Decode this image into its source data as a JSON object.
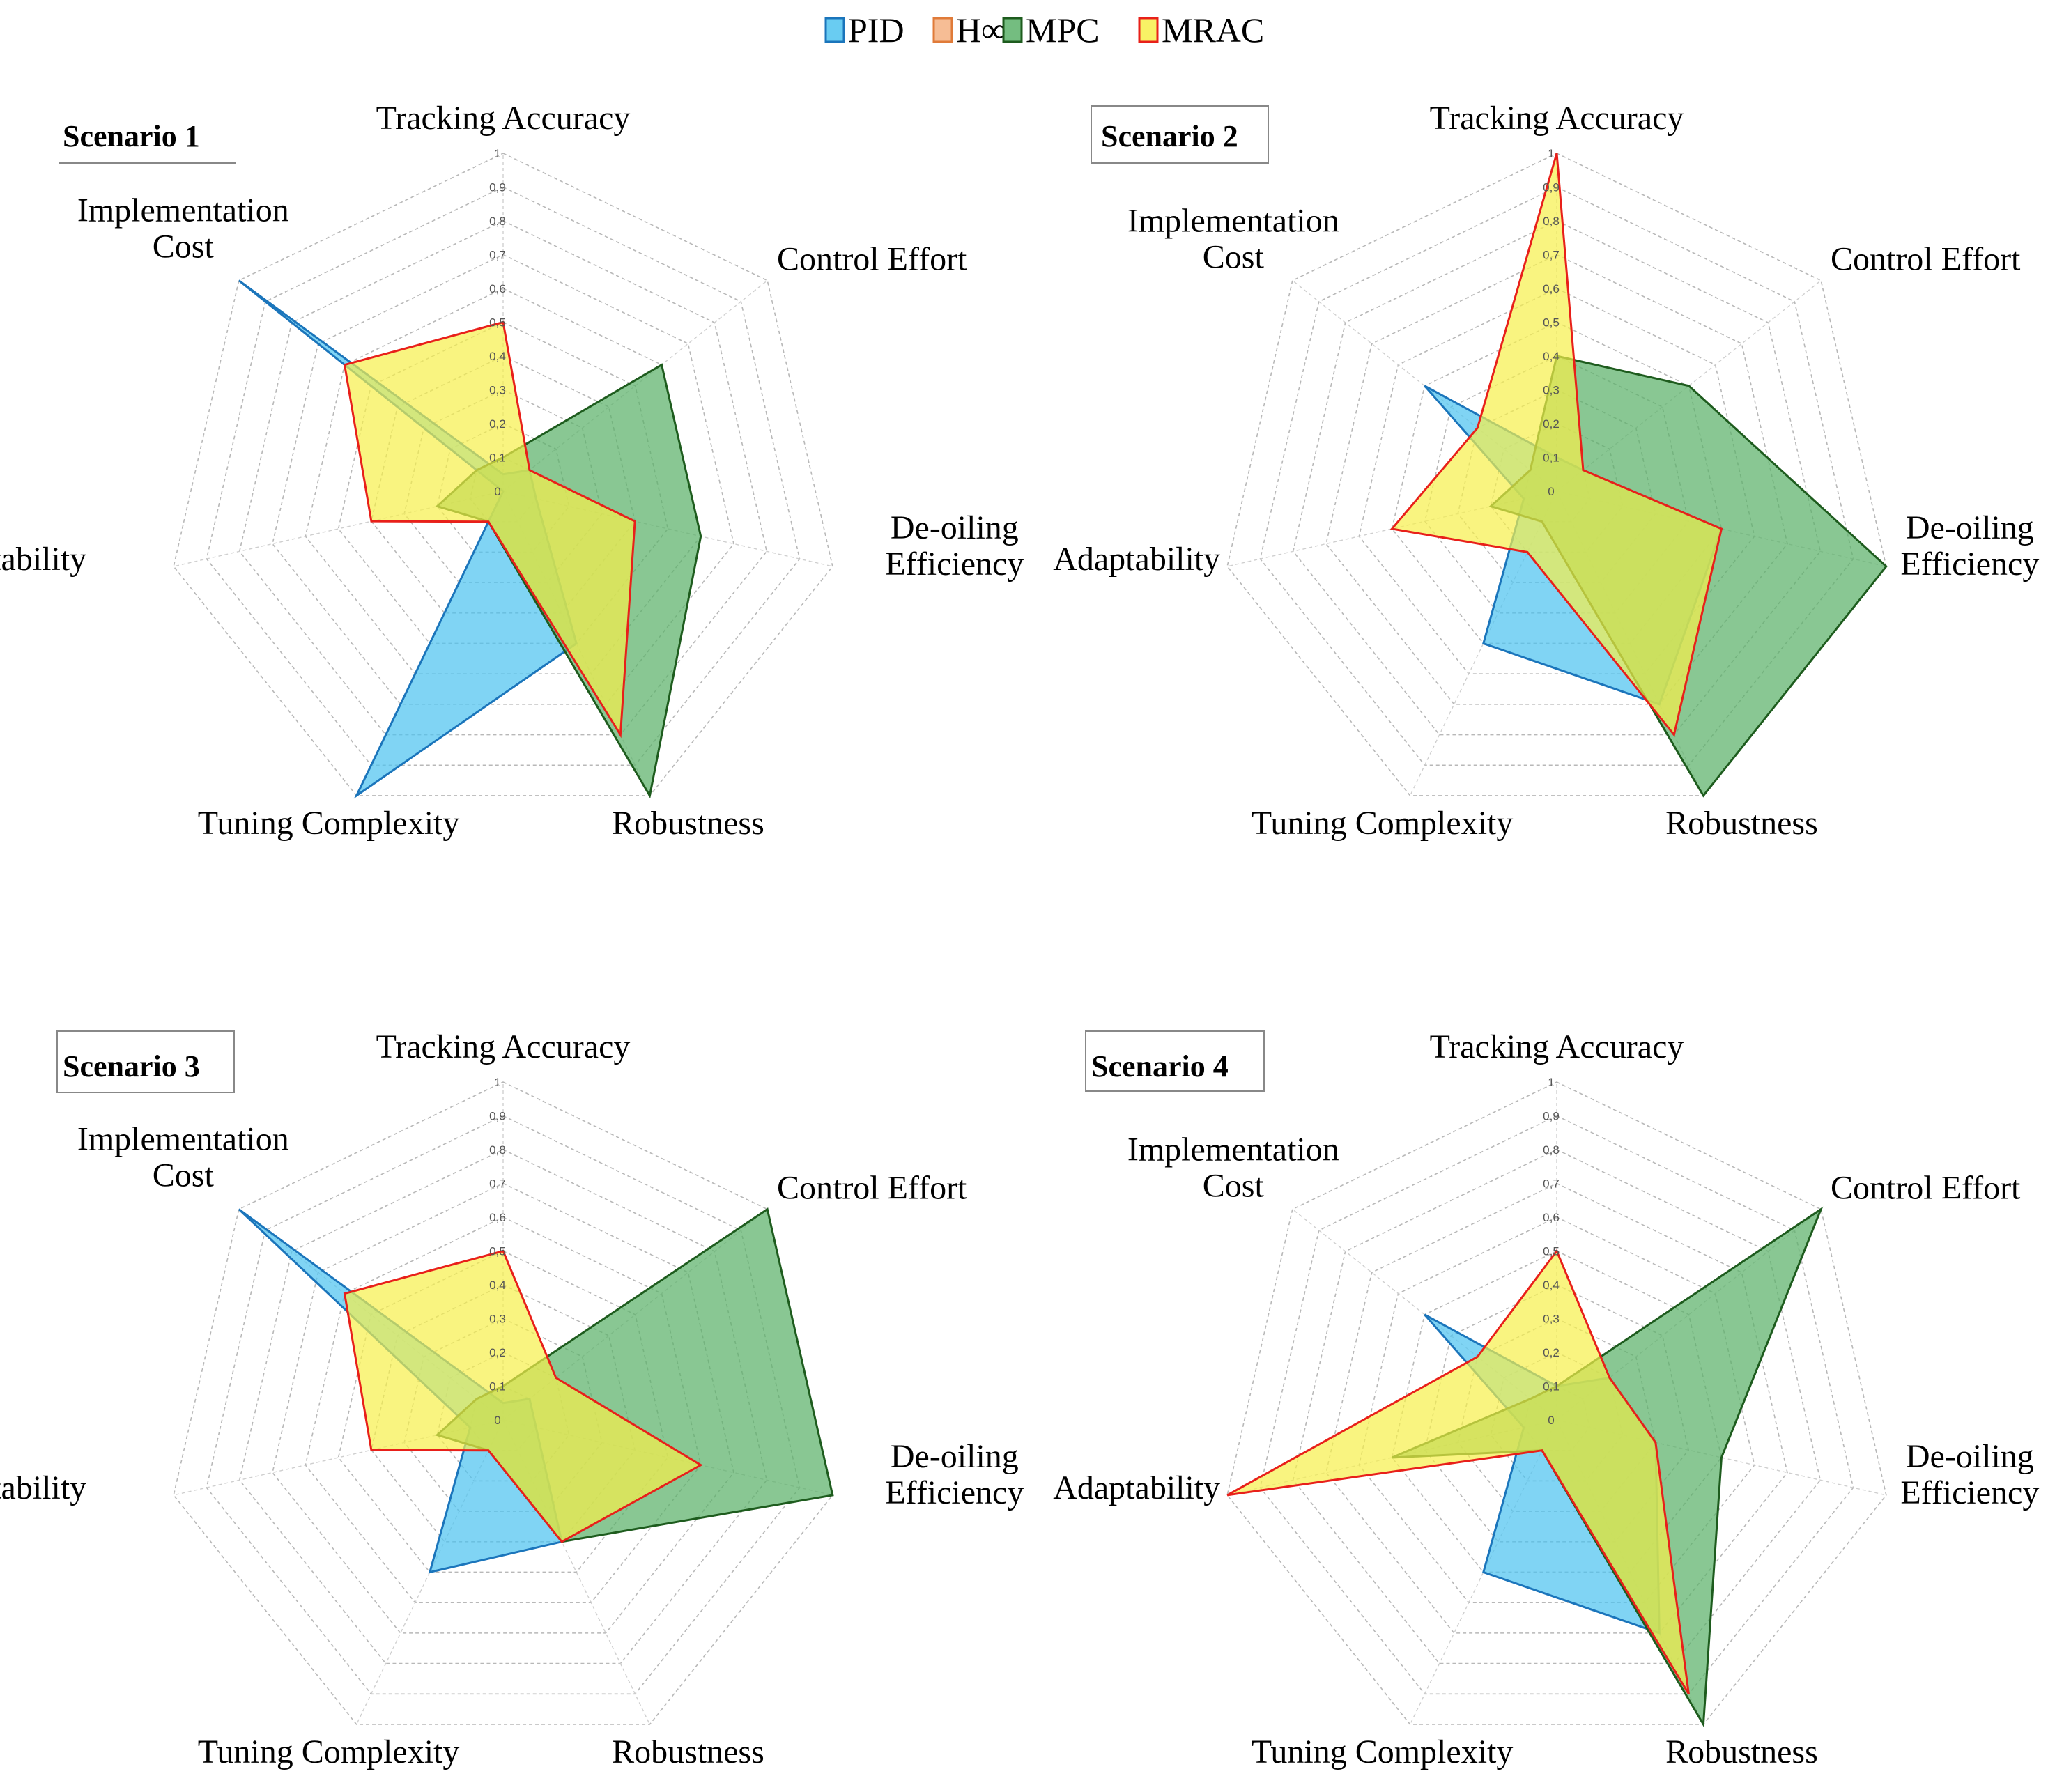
{
  "legend": [
    {
      "name": "PID",
      "fill": "#4fc3f0",
      "stroke": "#1b75bb"
    },
    {
      "name": "H∞",
      "fill": "#f4b183",
      "stroke": "#e07b39"
    },
    {
      "name": "MPC",
      "fill": "#5cb26a",
      "stroke": "#1e5c1e"
    },
    {
      "name": "MRAC",
      "fill": "#f7f04a",
      "stroke": "#e8201a"
    }
  ],
  "chart_data": [
    {
      "type": "radar",
      "title": "Scenario 1",
      "axes": [
        {
          "line1": "Tracking Accuracy",
          "line2": ""
        },
        {
          "line1": "Control Effort",
          "line2": ""
        },
        {
          "line1": "De-oiling",
          "line2": "Efficiency"
        },
        {
          "line1": "Robustness",
          "line2": ""
        },
        {
          "line1": "Tuning Complexity",
          "line2": ""
        },
        {
          "line1": "Adaptability",
          "line2": ""
        },
        {
          "line1": "Implementation",
          "line2": "Cost"
        }
      ],
      "ticks": [
        "0",
        "0,1",
        "0,2",
        "0,3",
        "0,4",
        "0,5",
        "0,6",
        "0,7",
        "0,8",
        "0,9",
        "1"
      ],
      "range": [
        0,
        1
      ],
      "series": [
        {
          "name": "PID",
          "values": [
            0.05,
            0.1,
            0.1,
            0.5,
            1.0,
            0.0,
            1.0
          ]
        },
        {
          "name": "MPC",
          "values": [
            0.1,
            0.6,
            0.6,
            1.0,
            0.1,
            0.2,
            0.1
          ]
        },
        {
          "name": "MRAC",
          "values": [
            0.5,
            0.1,
            0.4,
            0.8,
            0.1,
            0.4,
            0.6
          ]
        }
      ]
    },
    {
      "type": "radar",
      "title": "Scenario 2",
      "axes": [
        {
          "line1": "Tracking Accuracy",
          "line2": ""
        },
        {
          "line1": "Control Effort",
          "line2": ""
        },
        {
          "line1": "De-oiling",
          "line2": "Efficiency"
        },
        {
          "line1": "Robustness",
          "line2": ""
        },
        {
          "line1": "Tuning Complexity",
          "line2": ""
        },
        {
          "line1": "Adaptability",
          "line2": ""
        },
        {
          "line1": "Implementation",
          "line2": "Cost"
        }
      ],
      "ticks": [
        "0",
        "0,1",
        "0,2",
        "0,3",
        "0,4",
        "0,5",
        "0,6",
        "0,7",
        "0,8",
        "0,9",
        "1"
      ],
      "range": [
        0,
        1
      ],
      "series": [
        {
          "name": "PID",
          "values": [
            0.1,
            0.1,
            0.5,
            0.7,
            0.5,
            0.1,
            0.5
          ]
        },
        {
          "name": "MPC",
          "values": [
            0.4,
            0.5,
            1.0,
            1.0,
            0.1,
            0.2,
            0.1
          ]
        },
        {
          "name": "MRAC",
          "values": [
            1.0,
            0.1,
            0.5,
            0.8,
            0.2,
            0.5,
            0.3
          ]
        }
      ]
    },
    {
      "type": "radar",
      "title": "Scenario 3",
      "axes": [
        {
          "line1": "Tracking Accuracy",
          "line2": ""
        },
        {
          "line1": "Control Effort",
          "line2": ""
        },
        {
          "line1": "De-oiling",
          "line2": "Efficiency"
        },
        {
          "line1": "Robustness",
          "line2": ""
        },
        {
          "line1": "Tuning Complexity",
          "line2": ""
        },
        {
          "line1": "Adaptability",
          "line2": ""
        },
        {
          "line1": "Implementation",
          "line2": "Cost"
        }
      ],
      "ticks": [
        "0",
        "0,1",
        "0,2",
        "0,3",
        "0,4",
        "0,5",
        "0,6",
        "0,7",
        "0,8",
        "0,9",
        "1"
      ],
      "range": [
        0,
        1
      ],
      "series": [
        {
          "name": "PID",
          "values": [
            0.05,
            0.1,
            0.1,
            0.4,
            0.5,
            0.1,
            1.0
          ]
        },
        {
          "name": "MPC",
          "values": [
            0.1,
            1.0,
            1.0,
            0.4,
            0.1,
            0.2,
            0.1
          ]
        },
        {
          "name": "MRAC",
          "values": [
            0.5,
            0.2,
            0.6,
            0.4,
            0.1,
            0.4,
            0.6
          ]
        }
      ]
    },
    {
      "type": "radar",
      "title": "Scenario 4",
      "axes": [
        {
          "line1": "Tracking Accuracy",
          "line2": ""
        },
        {
          "line1": "Control Effort",
          "line2": ""
        },
        {
          "line1": "De-oiling",
          "line2": "Efficiency"
        },
        {
          "line1": "Robustness",
          "line2": ""
        },
        {
          "line1": "Tuning Complexity",
          "line2": ""
        },
        {
          "line1": "Adaptability",
          "line2": ""
        },
        {
          "line1": "Implementation",
          "line2": "Cost"
        }
      ],
      "ticks": [
        "0",
        "0,1",
        "0,2",
        "0,3",
        "0,4",
        "0,5",
        "0,6",
        "0,7",
        "0,8",
        "0,9",
        "1"
      ],
      "range": [
        0,
        1
      ],
      "series": [
        {
          "name": "PID",
          "values": [
            0.1,
            0.2,
            0.3,
            0.7,
            0.5,
            0.1,
            0.5
          ]
        },
        {
          "name": "MPC",
          "values": [
            0.1,
            1.0,
            0.5,
            1.0,
            0.1,
            0.5,
            0.1
          ]
        },
        {
          "name": "MRAC",
          "values": [
            0.5,
            0.2,
            0.3,
            0.9,
            0.1,
            1.0,
            0.3
          ]
        }
      ]
    }
  ]
}
